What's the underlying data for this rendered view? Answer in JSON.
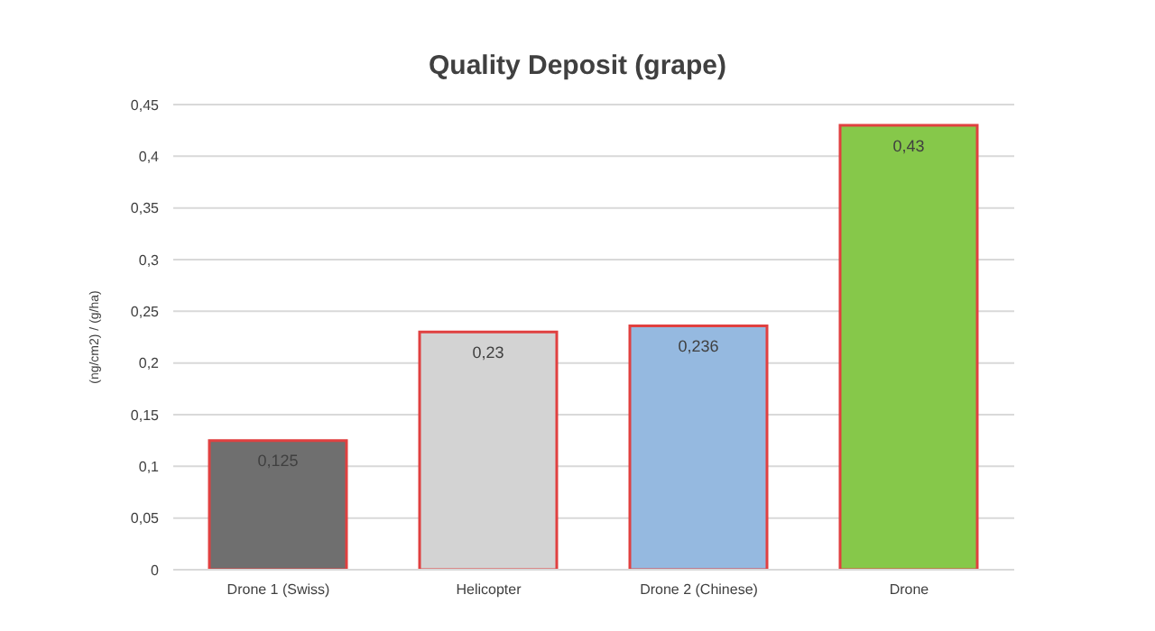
{
  "chart_data": {
    "type": "bar",
    "title": "Quality Deposit (grape)",
    "ylabel": "(ng/cm2) / (g/ha)",
    "categories": [
      "Drone 1 (Swiss)",
      "Helicopter",
      "Drone 2 (Chinese)",
      "Drone"
    ],
    "values": [
      0.125,
      0.23,
      0.236,
      0.43
    ],
    "colors": [
      "#6f6f6f",
      "#d3d3d3",
      "#95b9e0",
      "#86c84a"
    ],
    "value_labels": [
      "0,125",
      "0,23",
      "0,236",
      "0,43"
    ],
    "ylim": [
      0,
      0.45
    ],
    "yticks": [
      {
        "value": 0,
        "label": "0"
      },
      {
        "value": 0.05,
        "label": "0,05"
      },
      {
        "value": 0.1,
        "label": "0,1"
      },
      {
        "value": 0.15,
        "label": "0,15"
      },
      {
        "value": 0.2,
        "label": "0,2"
      },
      {
        "value": 0.25,
        "label": "0,25"
      },
      {
        "value": 0.3,
        "label": "0,3"
      },
      {
        "value": 0.35,
        "label": "0,35"
      },
      {
        "value": 0.4,
        "label": "0,4"
      },
      {
        "value": 0.45,
        "label": "0,45"
      }
    ],
    "grid": "y"
  }
}
